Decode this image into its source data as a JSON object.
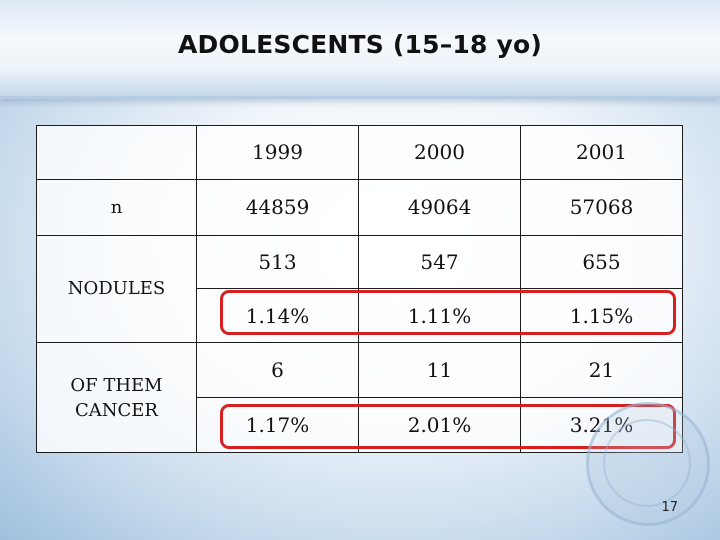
{
  "slide": {
    "title": "ADOLESCENTS (15–18 yo)",
    "page_number": "17"
  },
  "table": {
    "years": [
      "1999",
      "2000",
      "2001"
    ],
    "n": {
      "label": "n",
      "values": [
        "44859",
        "49064",
        "57068"
      ]
    },
    "nodules": {
      "label": "NODULES",
      "counts": [
        "513",
        "547",
        "655"
      ],
      "percents": [
        "1.14%",
        "1.11%",
        "1.15%"
      ]
    },
    "cancer": {
      "label": "OF THEM CANCER",
      "counts": [
        "6",
        "11",
        "21"
      ],
      "percents": [
        "1.17%",
        "2.01%",
        "3.21%"
      ]
    }
  },
  "colors": {
    "highlight": "#d52020",
    "title_band": "#c6d9ec"
  },
  "icons": {
    "watermark": "association-seal-icon"
  }
}
